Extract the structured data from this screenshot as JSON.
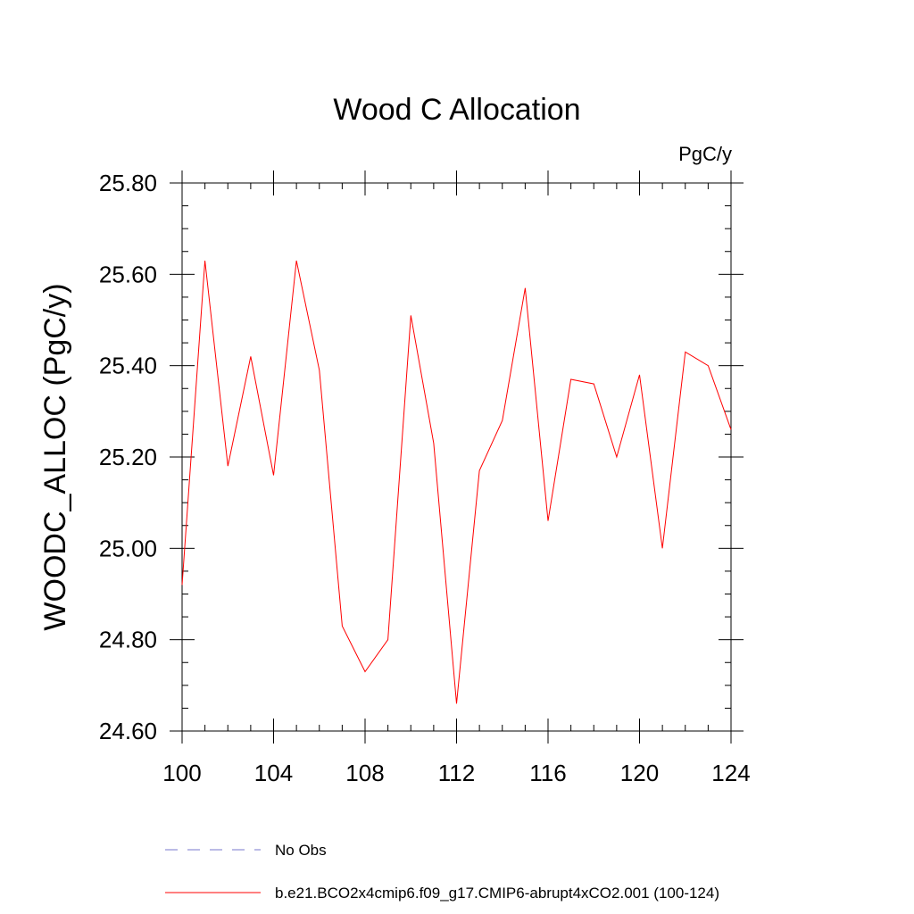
{
  "chart_data": {
    "type": "line",
    "title": "Wood C Allocation",
    "units_label": "PgC/y",
    "xlabel": "",
    "ylabel": "WOODC_ALLOC  (PgC/y)",
    "xlim": [
      100,
      124
    ],
    "ylim": [
      24.6,
      25.8
    ],
    "x_ticks": [
      100,
      104,
      108,
      112,
      116,
      120,
      124
    ],
    "x_tick_labels": [
      "100",
      "104",
      "108",
      "112",
      "116",
      "120",
      "124"
    ],
    "y_ticks": [
      24.6,
      24.8,
      25.0,
      25.2,
      25.4,
      25.6,
      25.8
    ],
    "y_tick_labels": [
      "24.60",
      "24.80",
      "25.00",
      "25.20",
      "25.40",
      "25.60",
      "25.80"
    ],
    "series": [
      {
        "name": "b.e21.BCO2x4cmip6.f09_g17.CMIP6-abrupt4xCO2.001 (100-124)",
        "color": "#ff0000",
        "x": [
          100,
          101,
          102,
          103,
          104,
          105,
          106,
          107,
          108,
          109,
          110,
          111,
          112,
          113,
          114,
          115,
          116,
          117,
          118,
          119,
          120,
          121,
          122,
          123,
          124
        ],
        "values": [
          24.92,
          25.63,
          25.18,
          25.42,
          25.16,
          25.63,
          25.39,
          24.83,
          24.73,
          24.8,
          25.51,
          25.23,
          24.66,
          25.17,
          25.28,
          25.57,
          25.06,
          25.37,
          25.36,
          25.2,
          25.38,
          25.0,
          25.43,
          25.4,
          25.26
        ]
      }
    ],
    "legend": [
      {
        "label": "No Obs",
        "color": "#7777cc",
        "style": "dashed"
      },
      {
        "label": "b.e21.BCO2x4cmip6.f09_g17.CMIP6-abrupt4xCO2.001 (100-124)",
        "color": "#ff0000",
        "style": "solid"
      }
    ],
    "legend_position": "bottom"
  }
}
